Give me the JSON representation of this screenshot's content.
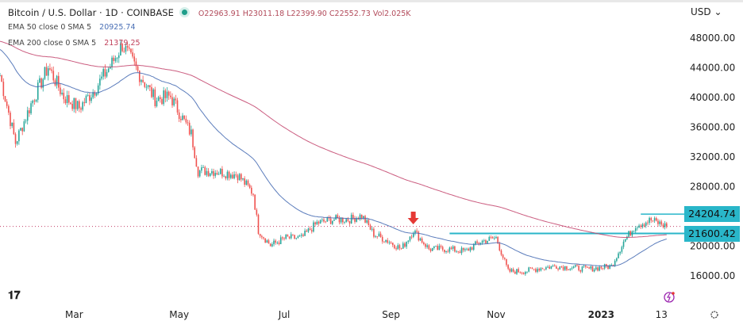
{
  "header": {
    "title": "Bitcoin / U.S. Dollar · 1D · COINBASE",
    "open": "O22963.91",
    "high": "H23011.18",
    "low": "L22399.90",
    "close": "C22552.73",
    "volume": "Vol2.025K",
    "ema50_label": "EMA 50 close 0 SMA 5",
    "ema50_value": "20925.74",
    "ema200_label": "EMA 200 close 0 SMA 5",
    "ema200_value": "21379.25",
    "currency": "USD"
  },
  "colors": {
    "up": "#26a69a",
    "down": "#ef5350",
    "ema50": "#3f66b0",
    "ema200": "#c2416a",
    "level": "#29b6c9",
    "arrow": "#e53935"
  },
  "chart_data": {
    "type": "candlestick",
    "x_unit": "days since 2022-01-17",
    "keypoints": {
      "day": [
        0,
        9,
        18,
        28,
        37,
        46,
        55,
        65,
        71,
        81,
        90,
        99,
        111,
        115,
        124,
        138,
        147,
        150,
        157,
        166,
        175,
        184,
        194,
        203,
        210,
        217,
        226,
        233,
        240,
        249,
        260,
        270,
        279,
        288,
        295,
        304,
        313,
        323,
        332,
        341,
        355,
        362,
        369,
        378,
        387
      ],
      "close": [
        42900,
        33800,
        39000,
        44000,
        40000,
        38500,
        41000,
        44500,
        47000,
        43000,
        39700,
        40000,
        35000,
        30000,
        30000,
        29500,
        27000,
        22000,
        20000,
        21000,
        21000,
        23000,
        23500,
        23500,
        24000,
        21500,
        20500,
        19500,
        22000,
        19500,
        19500,
        19200,
        20500,
        21000,
        16500,
        16500,
        16900,
        17200,
        17000,
        16800,
        17200,
        20500,
        22700,
        23400,
        22552.73
      ]
    },
    "ema50_seed": 46500,
    "ema200_seed": 47500,
    "yticks": [
      "48000.00",
      "44000.00",
      "40000.00",
      "36000.00",
      "32000.00",
      "28000.00",
      "20000.00",
      "16000.00"
    ],
    "ytick_values": [
      48000,
      44000,
      40000,
      36000,
      32000,
      28000,
      20000,
      16000
    ],
    "xticks": [
      {
        "label": "Mar",
        "day": 43
      },
      {
        "label": "May",
        "day": 104
      },
      {
        "label": "Jul",
        "day": 165
      },
      {
        "label": "Sep",
        "day": 227
      },
      {
        "label": "Nov",
        "day": 288
      },
      {
        "label": "2023",
        "day": 349
      },
      {
        "label": "13",
        "day": 384
      }
    ],
    "levels": [
      {
        "value": 24204.74,
        "label": "24204.74",
        "from_day": 372
      },
      {
        "value": 21600.42,
        "label": "21600.42",
        "from_day": 261
      }
    ],
    "current_price": 22552.73,
    "arrow_day": 239
  }
}
